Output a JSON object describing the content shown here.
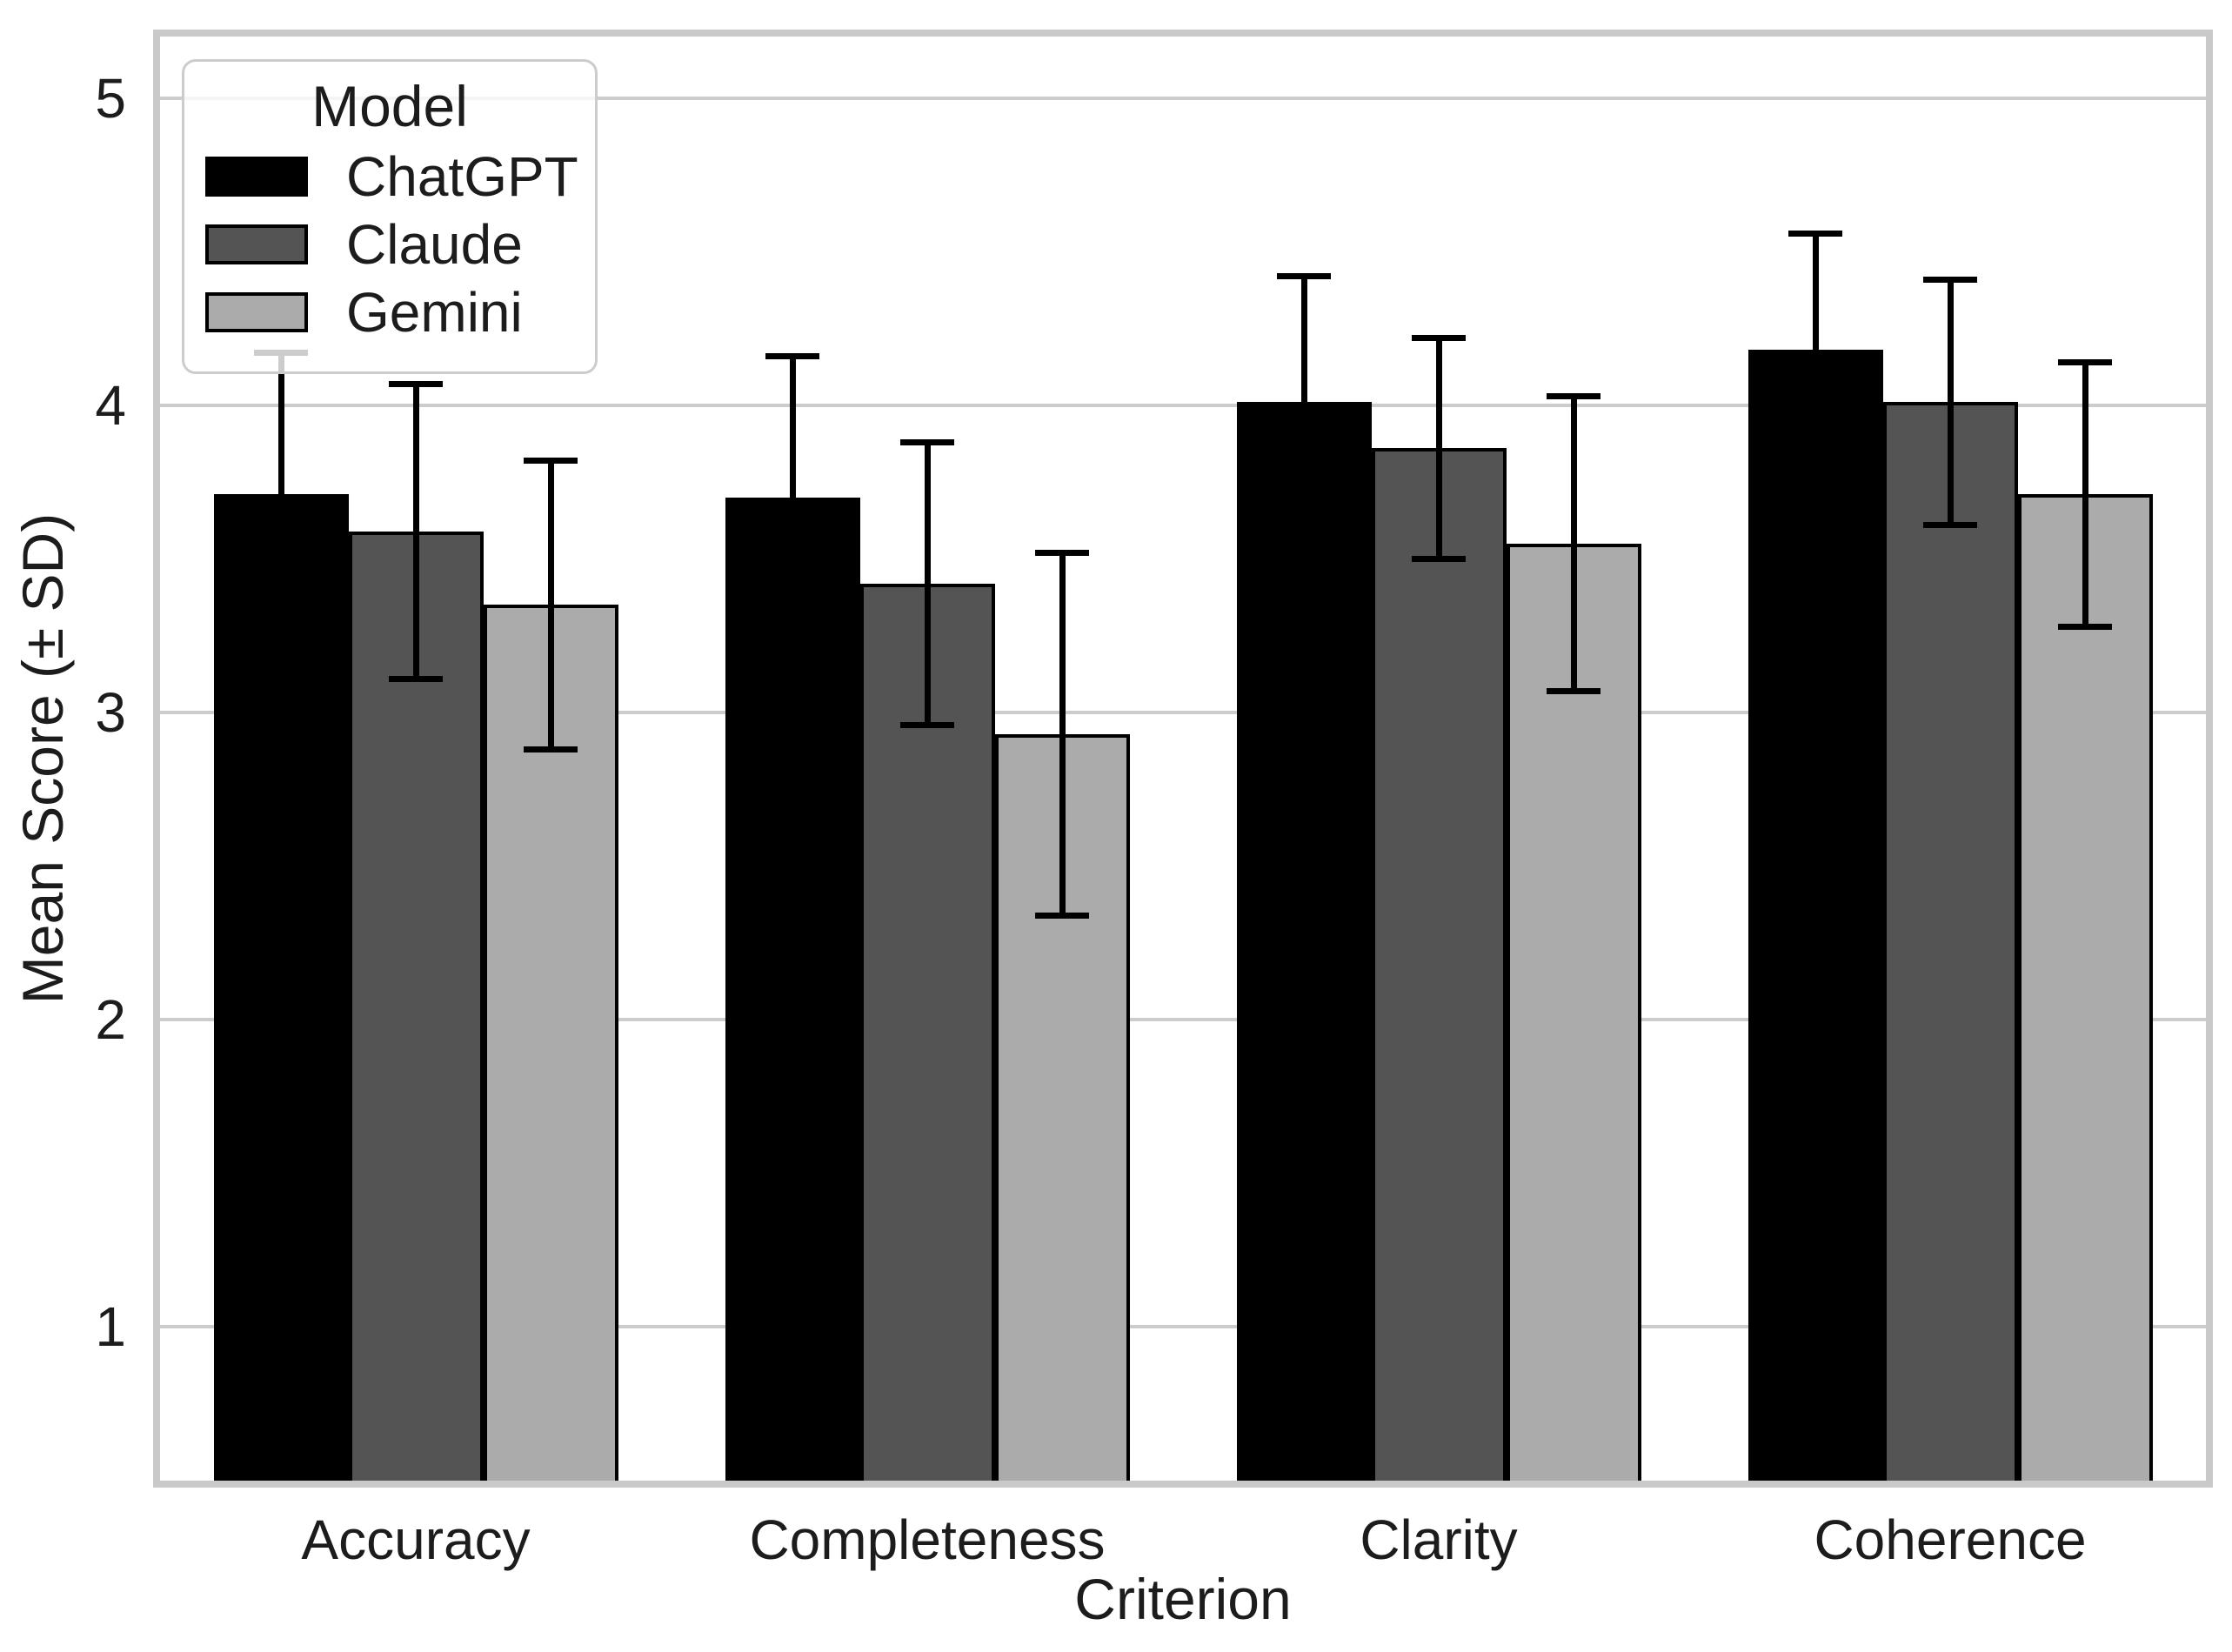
{
  "chart_data": {
    "type": "bar",
    "title": "",
    "xlabel": "Criterion",
    "ylabel": "Mean Score (± SD)",
    "categories": [
      "Accuracy",
      "Completeness",
      "Clarity",
      "Coherence"
    ],
    "series": [
      {
        "name": "ChatGPT",
        "color": "#000000",
        "means": [
          3.71,
          3.7,
          4.01,
          4.18
        ],
        "sds": [
          0.46,
          0.46,
          0.41,
          0.38
        ]
      },
      {
        "name": "Claude",
        "color": "#545454",
        "means": [
          3.59,
          3.42,
          3.86,
          4.01
        ],
        "sds": [
          0.48,
          0.46,
          0.36,
          0.4
        ]
      },
      {
        "name": "Gemini",
        "color": "#ababab",
        "means": [
          3.35,
          2.93,
          3.55,
          3.71
        ],
        "sds": [
          0.47,
          0.59,
          0.48,
          0.43
        ]
      }
    ],
    "error_bars": "± SD",
    "ylim": [
      0.5,
      5.2
    ],
    "yticks": [
      "1",
      "2",
      "3",
      "4",
      "5"
    ],
    "grid": true,
    "legend_title": "Model",
    "legend_position": "upper left",
    "colors": {
      "grid": "#cccccc",
      "spine": "#c9c9c9",
      "error_bar": "#000000",
      "text": "#1c1c1c",
      "background": "#ffffff"
    }
  }
}
